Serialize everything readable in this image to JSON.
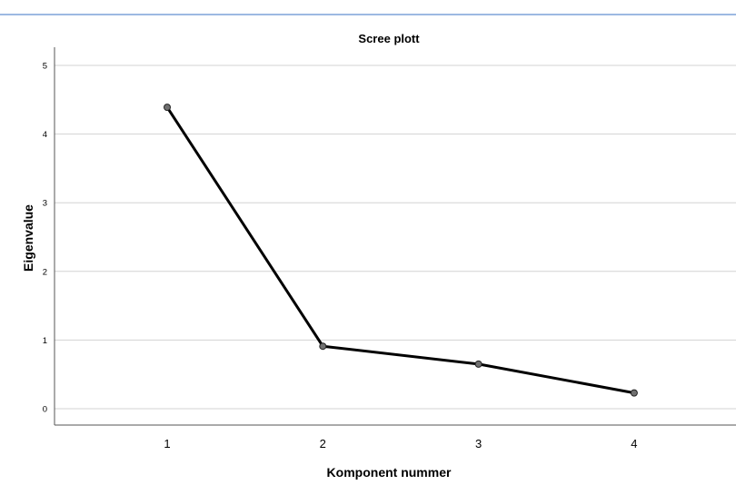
{
  "colors": {
    "header_rule": "#3b73c4",
    "gridline": "#d3d3d3",
    "axis": "#555555",
    "line": "#000000",
    "marker_fill": "#707070"
  },
  "chart_data": {
    "type": "line",
    "title": "Scree plott",
    "xlabel": "Komponent nummer",
    "ylabel": "Eigenvalue",
    "x": [
      1,
      2,
      3,
      4
    ],
    "xticks": [
      "1",
      "2",
      "3",
      "4"
    ],
    "yticks": [
      "0",
      "1",
      "2",
      "3",
      "4",
      "5"
    ],
    "ylim": [
      0,
      5
    ],
    "grid": true,
    "series": [
      {
        "values": [
          4.39,
          0.91,
          0.65,
          0.23
        ]
      }
    ]
  }
}
